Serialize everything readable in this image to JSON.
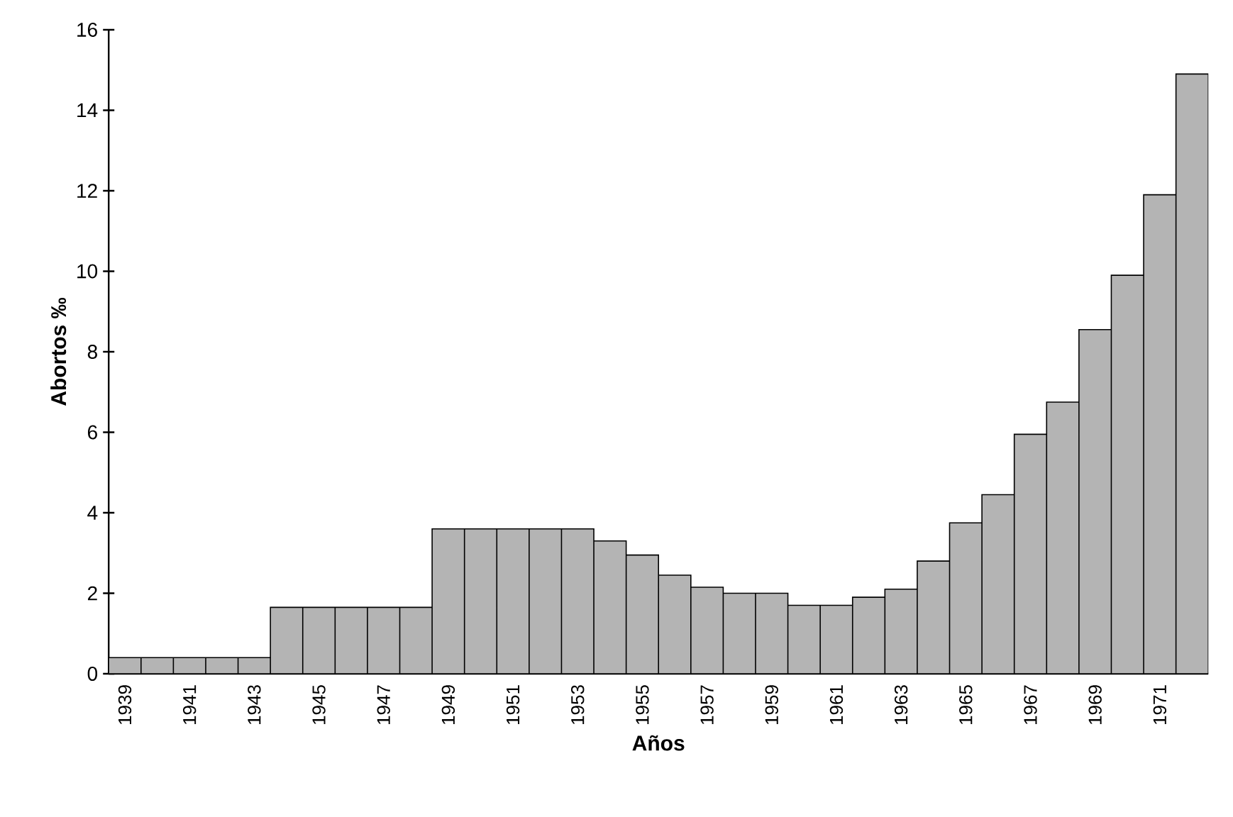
{
  "chart_data": {
    "type": "bar",
    "xlabel": "Años",
    "ylabel": "Abortos ‰",
    "categories": [
      "1939",
      null,
      "1941",
      null,
      "1943",
      null,
      "1945",
      null,
      "1947",
      null,
      "1949",
      null,
      "1951",
      null,
      "1953",
      null,
      "1955",
      null,
      "1957",
      null,
      "1959",
      null,
      "1961",
      null,
      "1963",
      null,
      "1965",
      null,
      "1967",
      null,
      "1969",
      null,
      "1971",
      null
    ],
    "values": [
      0.4,
      0.4,
      0.4,
      0.4,
      0.4,
      1.65,
      1.65,
      1.65,
      1.65,
      1.65,
      3.6,
      3.6,
      3.6,
      3.6,
      3.6,
      3.3,
      2.95,
      2.45,
      2.15,
      2.0,
      2.0,
      1.7,
      1.7,
      1.9,
      2.1,
      2.8,
      3.75,
      4.45,
      5.95,
      6.75,
      8.55,
      9.9,
      11.9,
      14.9
    ],
    "color": "#b4b4b4",
    "ylim": [
      0,
      16
    ],
    "yticks": [
      0,
      2,
      4,
      6,
      8,
      10,
      12,
      14,
      16
    ],
    "grid": false
  }
}
